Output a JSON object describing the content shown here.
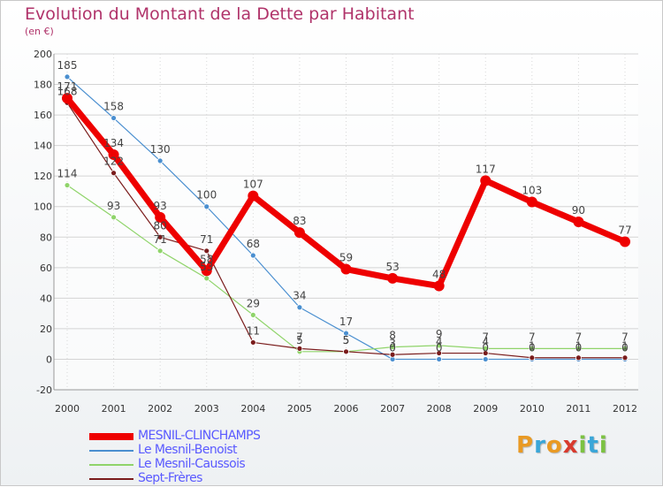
{
  "title": "Evolution du Montant de la Dette par Habitant",
  "subtitle": "(en €)",
  "logo": {
    "letters": [
      {
        "ch": "P",
        "color": "#e99a24"
      },
      {
        "ch": "r",
        "color": "#3aa6d8"
      },
      {
        "ch": "o",
        "color": "#e99a24"
      },
      {
        "ch": "x",
        "color": "#d83a2e"
      },
      {
        "ch": "i",
        "color": "#7cc242"
      },
      {
        "ch": "t",
        "color": "#3aa6d8"
      },
      {
        "ch": "i",
        "color": "#7cc242"
      }
    ]
  },
  "chart_data": {
    "type": "line",
    "x": [
      "2000",
      "2001",
      "2002",
      "2003",
      "2004",
      "2005",
      "2006",
      "2007",
      "2008",
      "2009",
      "2010",
      "2011",
      "2012"
    ],
    "ylim": [
      -20,
      200
    ],
    "yticks": [
      -20,
      0,
      20,
      40,
      60,
      80,
      100,
      120,
      140,
      160,
      180,
      200
    ],
    "grid": true,
    "legend_position": "bottom-left",
    "series": [
      {
        "name": "MESNIL-CLINCHAMPS",
        "color": "#ee0000",
        "values": [
          171,
          134,
          93,
          58,
          107,
          83,
          59,
          53,
          48,
          117,
          103,
          90,
          77
        ],
        "labels": [
          "171",
          "134",
          "93",
          "58",
          "107",
          "83",
          "59",
          "53",
          "48",
          "117",
          "103",
          "90",
          "77"
        ]
      },
      {
        "name": "Le Mesnil-Benoist",
        "color": "#4a8fd0",
        "values": [
          185,
          158,
          130,
          100,
          68,
          34,
          17,
          0,
          0,
          0,
          0,
          0,
          0
        ],
        "labels": [
          "185",
          "158",
          "130",
          "100",
          "68",
          "34",
          "17",
          "0",
          "0",
          "0",
          "0",
          "0",
          "0"
        ]
      },
      {
        "name": "Le Mesnil-Caussois",
        "color": "#8fd46a",
        "values": [
          114,
          93,
          71,
          53,
          29,
          5,
          5,
          8,
          9,
          7,
          7,
          7,
          7
        ],
        "labels": [
          "114",
          "93",
          "71",
          "53",
          "29",
          "5",
          "5",
          "8",
          "9",
          "7",
          "7",
          "7",
          "7"
        ]
      },
      {
        "name": "Sept-Frères",
        "color": "#7a1c1c",
        "values": [
          168,
          122,
          80,
          71,
          11,
          7,
          5,
          3,
          4,
          4,
          1,
          1,
          1
        ],
        "labels": [
          "168",
          "122",
          "80",
          "71",
          "11",
          "7",
          "5",
          "3",
          "4",
          "4",
          "1",
          "1",
          "1"
        ]
      }
    ]
  }
}
